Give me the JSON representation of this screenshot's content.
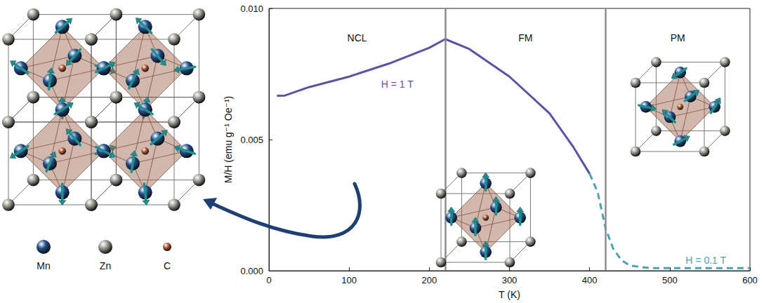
{
  "chart_data": {
    "type": "line",
    "x_label": "T (K)",
    "y_label": "M/H (emu g⁻¹ Oe⁻¹)",
    "xlim": [
      0,
      600
    ],
    "xticks": [
      0,
      100,
      200,
      300,
      400,
      500,
      600
    ],
    "ylim": [
      0,
      0.01
    ],
    "yticks": [
      {
        "value": 0,
        "label": "0.000"
      },
      {
        "value": 0.005,
        "label": "0.005"
      },
      {
        "value": 0.01,
        "label": "0.010"
      }
    ],
    "grid": false,
    "phases": [
      "NCL",
      "FM",
      "PM"
    ],
    "phase_boundaries": [
      220,
      420
    ],
    "series": [
      {
        "name": "H = 1 T",
        "color": "#5b52a8",
        "line_style": "solid",
        "x": [
          10,
          20,
          50,
          100,
          150,
          200,
          220,
          250,
          300,
          350,
          380,
          400
        ],
        "values": [
          0.00667,
          0.00668,
          0.007,
          0.0074,
          0.0079,
          0.0085,
          0.00883,
          0.00845,
          0.0074,
          0.006,
          0.0047,
          0.0037
        ],
        "label_x": 160,
        "label_y": 0.0071
      },
      {
        "name": "H = 0.1 T",
        "color": "#4aa3b0",
        "line_style": "dashed",
        "x": [
          400,
          410,
          420,
          430,
          440,
          450,
          475,
          500,
          550,
          600
        ],
        "values": [
          0.0037,
          0.003,
          0.0016,
          0.0008,
          0.0004,
          0.0002,
          0.0001,
          0.0001,
          0.0001,
          0.0001
        ],
        "label_x": 545,
        "label_y": 0.0004
      }
    ]
  },
  "atom_legend": [
    {
      "label": "Mn",
      "color": "#1f4f8f"
    },
    {
      "label": "Zn",
      "color": "#9a9a92"
    },
    {
      "label": "C",
      "color": "#b5562f"
    }
  ]
}
